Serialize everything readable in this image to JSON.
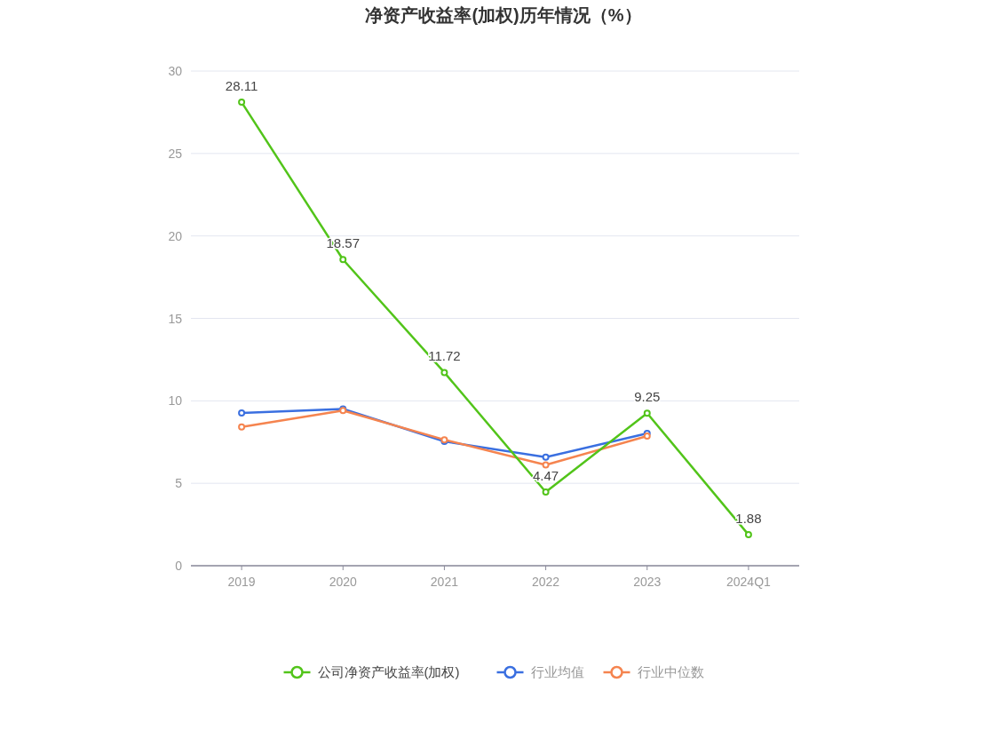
{
  "chart_data": {
    "type": "line",
    "title": "净资产收益率(加权)历年情况（%）",
    "categories": [
      "2019",
      "2020",
      "2021",
      "2022",
      "2023",
      "2024Q1"
    ],
    "series": [
      {
        "name": "公司净资产收益率(加权)",
        "color": "#52c41a",
        "values": [
          28.11,
          18.57,
          11.72,
          4.47,
          9.25,
          1.88
        ],
        "value_labels": [
          "28.11",
          "18.57",
          "11.72",
          "4.47",
          "9.25",
          "1.88"
        ]
      },
      {
        "name": "行业均值",
        "color": "#3a6fe0",
        "values": [
          9.26,
          9.51,
          7.54,
          6.58,
          8.03,
          null
        ]
      },
      {
        "name": "行业中位数",
        "color": "#f5844f",
        "values": [
          8.42,
          9.41,
          7.64,
          6.11,
          7.86,
          null
        ]
      }
    ],
    "ylim": [
      0,
      30
    ],
    "yticks": [
      0,
      5,
      10,
      15,
      20,
      25,
      30
    ],
    "grid": "y",
    "legend": "bottom",
    "marker": "circle",
    "line_style": "solid"
  }
}
